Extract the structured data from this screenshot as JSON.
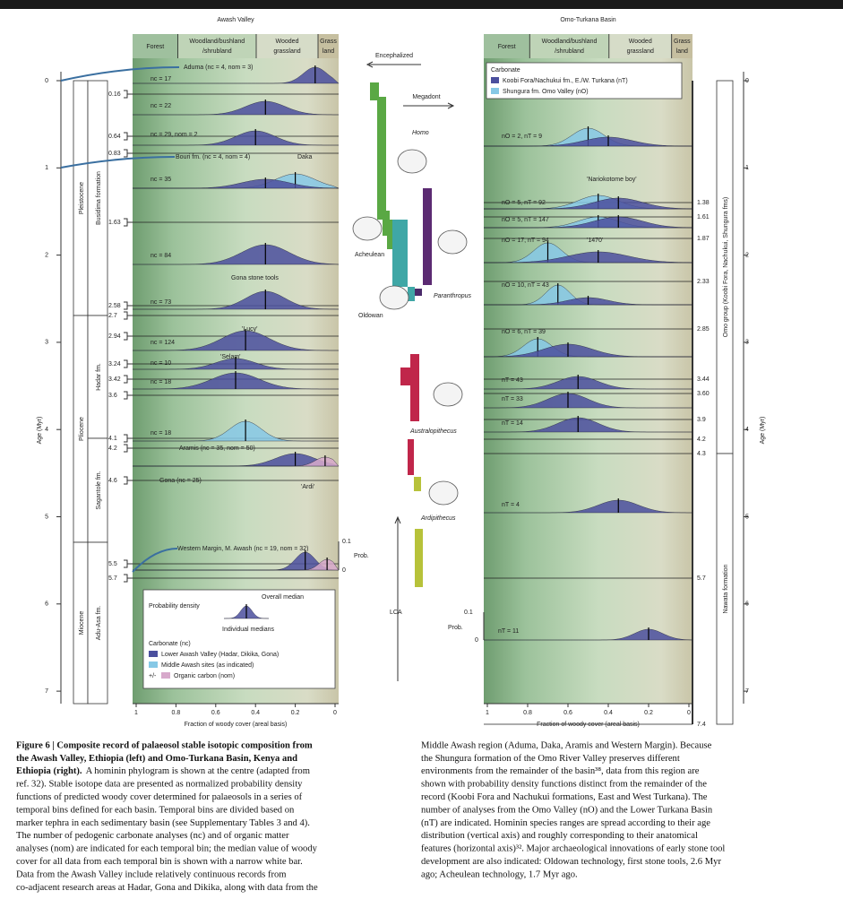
{
  "left_panel": {
    "title": "Awash Valley",
    "header": {
      "forest": "Forest",
      "woodland": [
        "Woodland/bushland",
        "/shrubland"
      ],
      "wooded": [
        "Wooded",
        "grassland"
      ],
      "grass": [
        "Grass",
        "land"
      ]
    },
    "epochs": [
      "Pleistocene",
      "Pliocene",
      "Miocene"
    ],
    "formations": [
      "Busidima formation",
      "Hadar fm.",
      "Sagantole fm.",
      "Adu-Asa fm."
    ],
    "bins": [
      "0.16",
      "0.64",
      "0.83",
      "1.63",
      "2.58",
      "2.7",
      "2.94",
      "3.24",
      "3.42",
      "3.6",
      "4.1",
      "4.2",
      "4.6",
      "5.5",
      "5.7"
    ],
    "rows": [
      "Aduma (nc = 4, nom = 3)",
      "nc = 17",
      "nc = 22",
      "nc = 29, nom = 2",
      "Bouri fm. (nc = 4, nom = 4)",
      "nc = 35",
      "nc = 84",
      "nc = 73",
      "nc = 124",
      "nc = 10",
      "nc = 18",
      "nc = 18",
      "Aramis (nc = 35, nom = 50)",
      "Gona (nc = 25)",
      "Western Margin, M. Awash (nc = 19, nom = 32)"
    ],
    "sites": [
      "Daka",
      "Gona stone tools",
      "'Lucy'",
      "'Selam'",
      "'Ardi'"
    ],
    "prob": {
      "high": "0.1",
      "label": "Prob.",
      "low": "0"
    },
    "legend": {
      "density": "Probability density",
      "overall": "Overall median",
      "individual": "Individual medians",
      "carbonate": "Carbonate (nc)",
      "lower": "Lower Awash Valley (Hadar, Dikika, Gona)",
      "middle": "Middle Awash sites (as indicated)",
      "pm": "+/-",
      "organic": "Organic carbon (nom)"
    },
    "xticks": [
      "1",
      "0.8",
      "0.6",
      "0.4",
      "0.2",
      "0"
    ],
    "xlabel": "Fraction of woody cover (areal basis)"
  },
  "right_panel": {
    "title": "Omo-Turkana Basin",
    "header": {
      "forest": "Forest",
      "woodland": [
        "Woodland/bushland",
        "/shrubland"
      ],
      "wooded": [
        "Wooded",
        "grassland"
      ],
      "grass": [
        "Grass",
        "land"
      ]
    },
    "legend": {
      "carbonate": "Carbonate",
      "turkana": "Koobi Fora/Nachukui fm., E./W. Turkana (nT)",
      "omo": "Shungura fm. Omo Valley (nO)"
    },
    "formations": [
      "Omo group (Koobi Fora, Nachukui, Shungura fms)",
      "Nawata formation"
    ],
    "bins": [
      "1.38",
      "1.61",
      "1.87",
      "2.33",
      "2.85",
      "3.44",
      "3.60",
      "3.9",
      "4.2",
      "4.3",
      "5.7",
      "7.4"
    ],
    "rows": [
      "nO = 2, nT = 9",
      "nO = 5, nT = 92",
      "nO = 5, nT = 147",
      "nO = 17, nT = 94",
      "nO = 10, nT = 43",
      "nO = 6, nT = 39",
      "nT = 43",
      "nT = 33",
      "nT = 14",
      "nT = 4",
      "nT = 11"
    ],
    "sites": [
      "'Nariokotome boy'",
      "'1470'"
    ],
    "prob": {
      "high": "0.1",
      "label": "Prob.",
      "low": "0"
    },
    "xticks": [
      "1",
      "0.8",
      "0.6",
      "0.4",
      "0.2",
      "0"
    ],
    "xlabel": "Fraction of woody cover (areal basis)"
  },
  "age_axis": {
    "label": "Age (Myr)",
    "ticks": [
      "0",
      "1",
      "2",
      "3",
      "4",
      "5",
      "6",
      "7"
    ]
  },
  "phylogram": {
    "encephalized": "Encephalized",
    "megadont": "Megadont",
    "homo": "Homo",
    "acheulean": "Acheulean",
    "paranthropus": "Paranthropus",
    "oldowan": "Oldowan",
    "australopithecus": "Australopithecus",
    "ardipithecus": "Ardipithecus",
    "lca": "LCA"
  },
  "caption_left": {
    "title_lines": [
      "Figure 6 | Composite record of palaeosol stable isotopic composition from",
      "the Awash Valley, Ethiopia (left) and Omo-Turkana Basin, Kenya and",
      "Ethiopia (right)."
    ],
    "lines": [
      "A hominin phylogram is shown at the centre (adapted from",
      "ref. 32). Stable isotope data are presented as normalized probability density",
      "functions of predicted woody cover determined for palaeosols in a series of",
      "temporal bins defined for each basin. Temporal bins are divided based on",
      "marker tephra in each sedimentary basin (see Supplementary Tables 3 and 4).",
      "The number of pedogenic carbonate analyses (nc) and of organic matter",
      "analyses (nom) are indicated for each temporal bin; the median value of woody",
      "cover for all data from each temporal bin is shown with a narrow white bar.",
      "Data from the Awash Valley include relatively continuous records from",
      "co-adjacent research areas at Hadar, Gona and Dikika, along with data from the"
    ]
  },
  "caption_right": {
    "lines": [
      "Middle Awash region (Aduma, Daka, Aramis and Western Margin). Because",
      "the Shungura formation of the Omo River Valley preserves different",
      "environments from the remainder of the basin³⁸, data from this region are",
      "shown with probability density functions distinct from the remainder of the",
      "record (Koobi Fora and Nachukui formations, East and West Turkana). The",
      "number of analyses from the Omo Valley (nO) and the Lower Turkana Basin",
      "(nT) are indicated. Hominin species ranges are spread according to their age",
      "distribution (vertical axis) and roughly corresponding to their anatomical",
      "features (horizontal axis)³². Major archaeological innovations of early stone tool",
      "development are also indicated: Oldowan technology, first stone tools, 2.6 Myr",
      "ago; Acheulean technology, 1.7 Myr ago."
    ]
  }
}
